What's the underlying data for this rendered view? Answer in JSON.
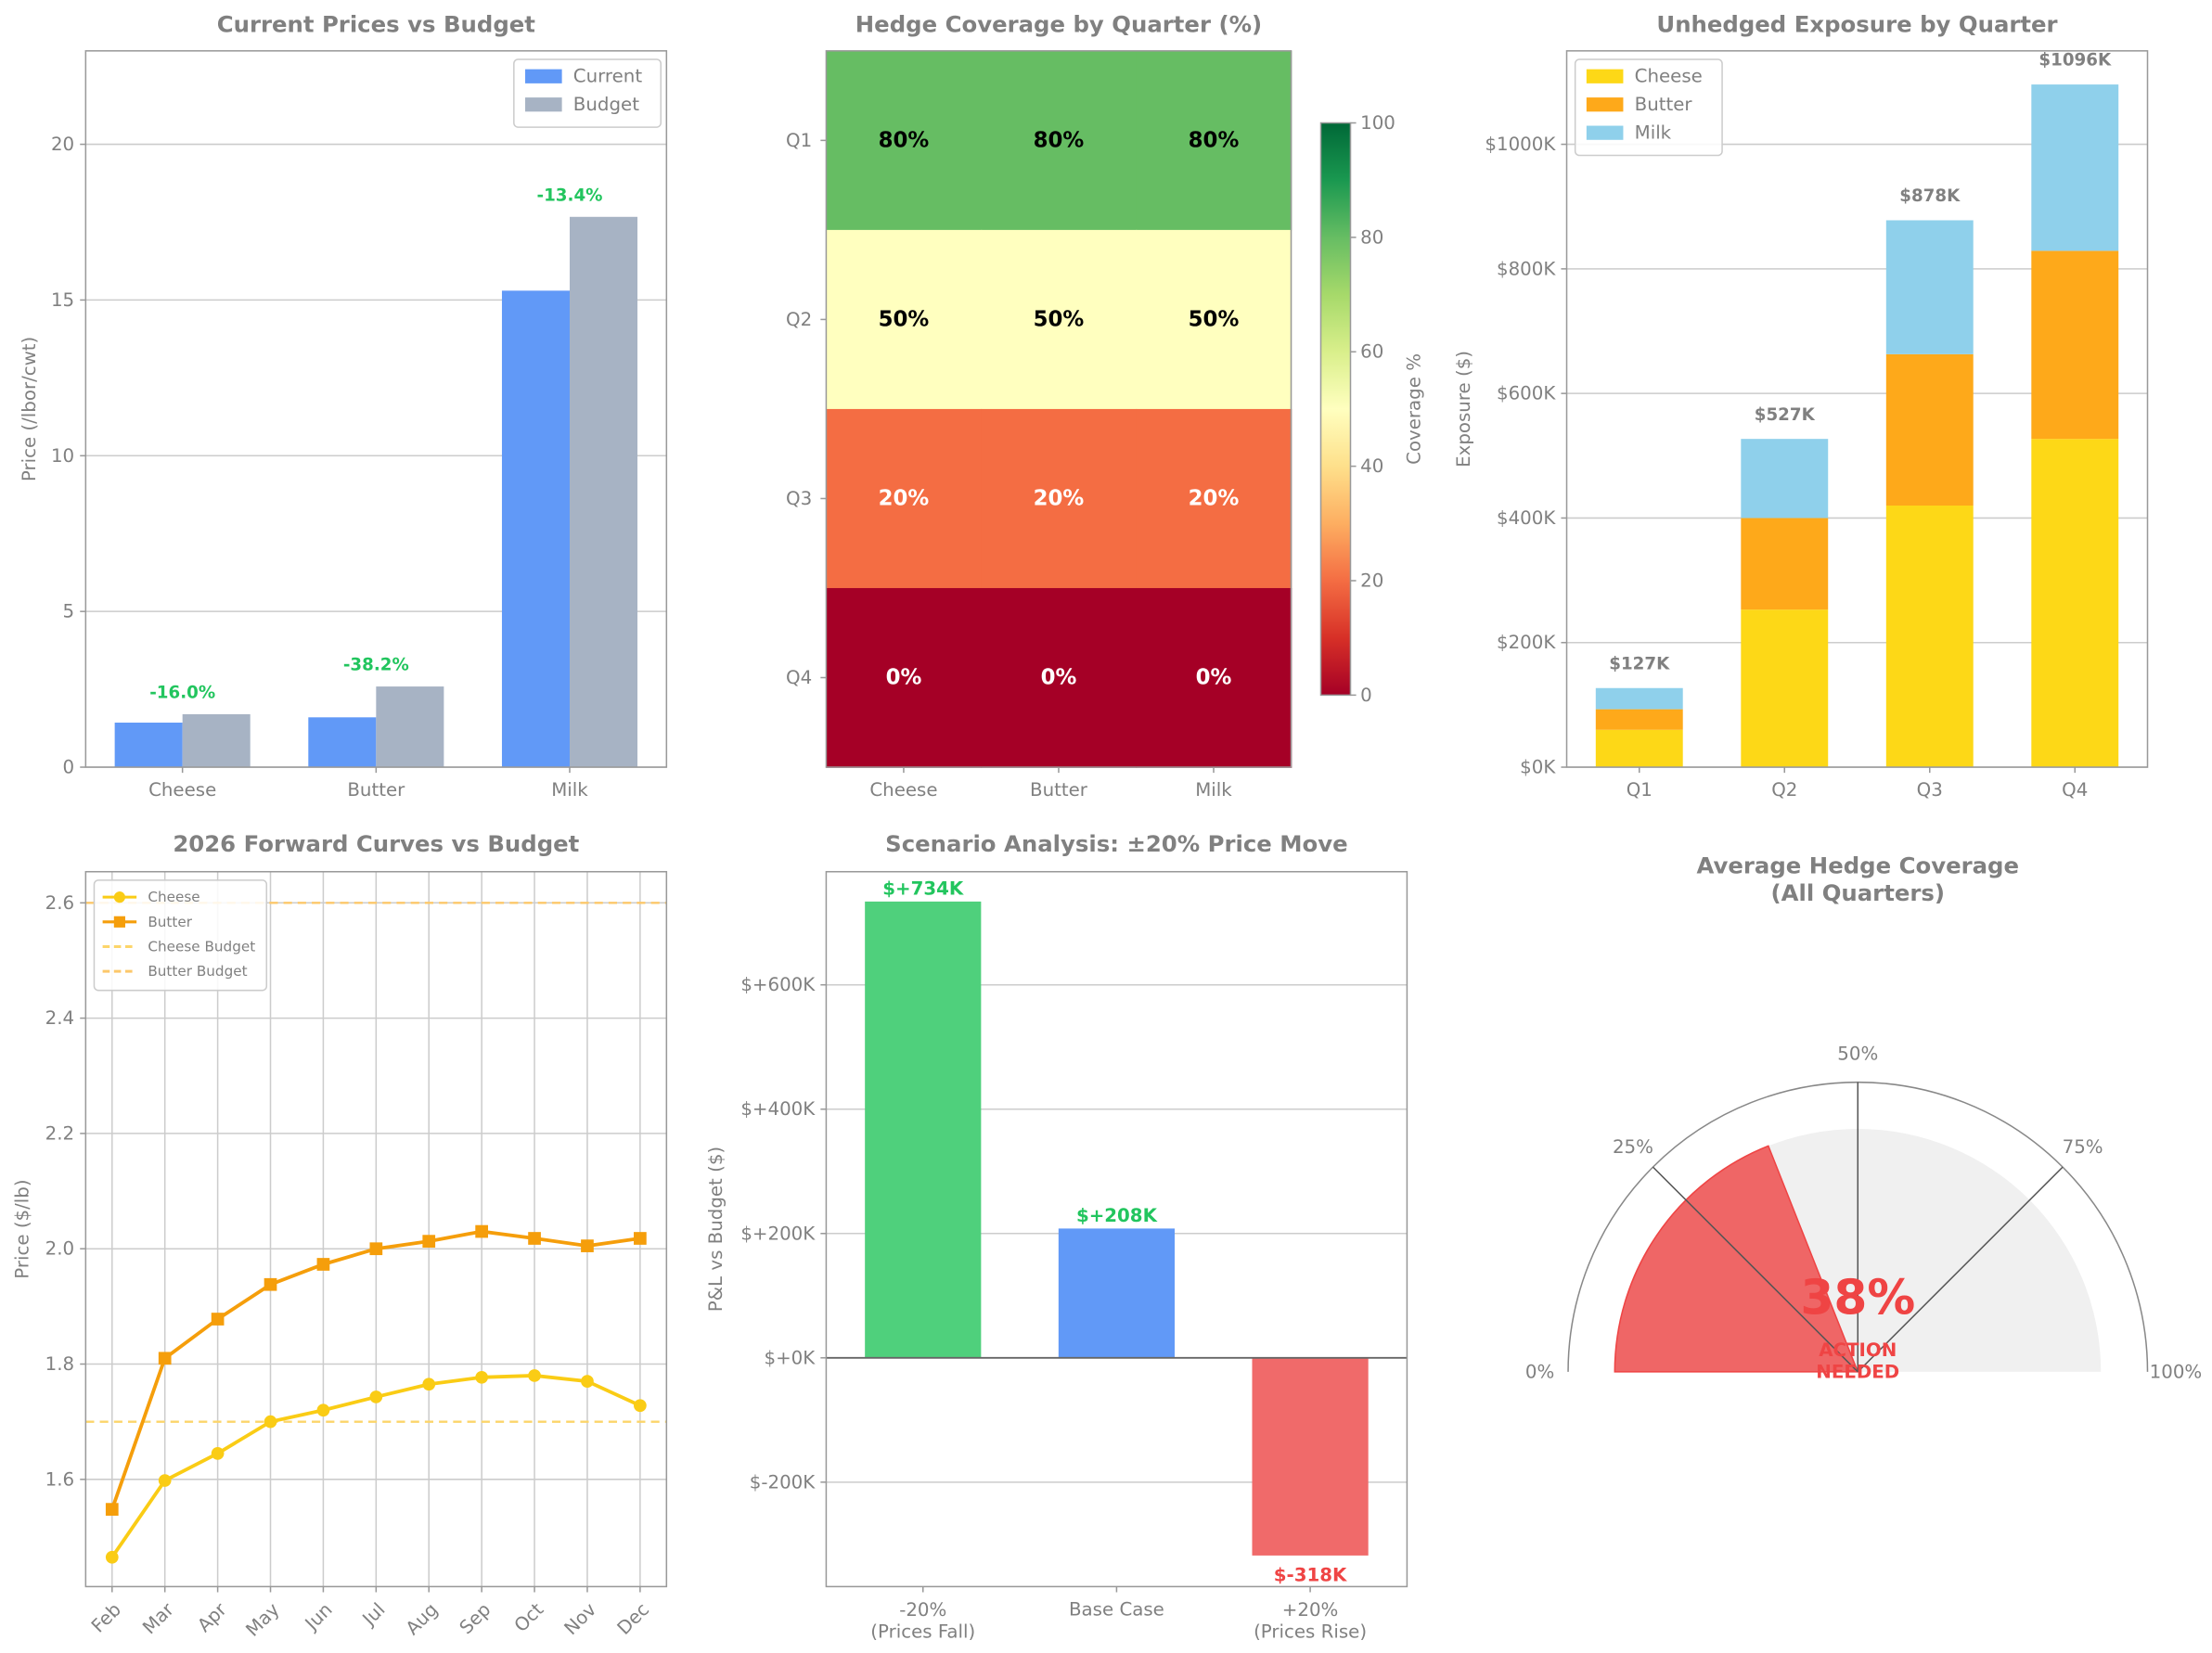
{
  "chart_data": [
    {
      "type": "bar",
      "title": "Current Prices vs Budget",
      "ylabel": "Price (/lbor/cwt)",
      "categories": [
        "Cheese",
        "Butter",
        "Milk"
      ],
      "series": [
        {
          "name": "Current",
          "color": "#6199f7",
          "values": [
            1.43,
            1.6,
            15.3
          ]
        },
        {
          "name": "Budget",
          "color": "#a7b3c4",
          "values": [
            1.7,
            2.59,
            17.67
          ]
        }
      ],
      "differences": {
        "values": [
          -16.0,
          -38.2,
          -13.4
        ],
        "value_labels": [
          "-16.0%",
          "-38.2%",
          "-13.4%"
        ],
        "color": "#22c55e"
      },
      "ylim": [
        0,
        23
      ],
      "yticks": [
        0,
        5,
        10,
        15,
        20
      ],
      "grid": "y",
      "legend": "upper right"
    },
    {
      "type": "heatmap",
      "title": "Hedge Coverage by Quarter (%)",
      "rows": [
        "Q1",
        "Q2",
        "Q3",
        "Q4"
      ],
      "columns": [
        "Cheese",
        "Butter",
        "Milk"
      ],
      "values": [
        [
          80,
          80,
          80
        ],
        [
          50,
          50,
          50
        ],
        [
          20,
          20,
          20
        ],
        [
          0,
          0,
          0
        ]
      ],
      "value_labels": [
        [
          "80%",
          "80%",
          "80%"
        ],
        [
          "50%",
          "50%",
          "50%"
        ],
        [
          "20%",
          "20%",
          "20%"
        ],
        [
          "0%",
          "0%",
          "0%"
        ]
      ],
      "cmap": "RdYlGn",
      "clim": [
        0,
        100
      ],
      "cbar_ticks": [
        0,
        20,
        40,
        60,
        80,
        100
      ],
      "cbar_label": "Coverage %"
    },
    {
      "type": "stacked_bar",
      "title": "Unhedged Exposure by Quarter",
      "ylabel": "Exposure ($)",
      "categories": [
        "Q1",
        "Q2",
        "Q3",
        "Q4"
      ],
      "series": [
        {
          "name": "Cheese",
          "color": "#fdd817",
          "values": [
            60000,
            253000,
            420000,
            527000
          ]
        },
        {
          "name": "Butter",
          "color": "#fea91a",
          "values": [
            33000,
            147000,
            243000,
            302000
          ]
        },
        {
          "name": "Milk",
          "color": "#8fd0eb",
          "values": [
            34000,
            127000,
            215000,
            267000
          ]
        }
      ],
      "totals": {
        "values": [
          127000,
          527000,
          878000,
          1096000
        ],
        "value_labels": [
          "$127K",
          "$527K",
          "$878K",
          "$1096K"
        ]
      },
      "ylim": [
        0,
        1150000
      ],
      "yticks": [
        {
          "value": 0,
          "label": "$0K"
        },
        {
          "value": 200000,
          "label": "$200K"
        },
        {
          "value": 400000,
          "label": "$400K"
        },
        {
          "value": 600000,
          "label": "$600K"
        },
        {
          "value": 800000,
          "label": "$800K"
        },
        {
          "value": 1000000,
          "label": "$1000K"
        }
      ],
      "grid": "y",
      "legend": "upper left"
    },
    {
      "type": "line",
      "title": "2026 Forward Curves vs Budget",
      "ylabel": "Price ($/lb)",
      "categories": [
        "Feb",
        "Mar",
        "Apr",
        "May",
        "Jun",
        "Jul",
        "Aug",
        "Sep",
        "Oct",
        "Nov",
        "Dec"
      ],
      "series": [
        {
          "name": "Cheese",
          "color": "#facc15",
          "marker": "circle",
          "values": [
            1.465,
            1.598,
            1.645,
            1.7,
            1.72,
            1.743,
            1.765,
            1.777,
            1.78,
            1.77,
            1.728
          ]
        },
        {
          "name": "Butter",
          "color": "#f59e0b",
          "marker": "square",
          "values": [
            1.548,
            1.81,
            1.878,
            1.938,
            1.973,
            2.0,
            2.013,
            2.03,
            2.018,
            2.005,
            2.018
          ]
        }
      ],
      "reference_lines": [
        {
          "name": "Cheese Budget",
          "value": 1.7,
          "color": "#fcd56a"
        },
        {
          "name": "Butter Budget",
          "value": 2.6,
          "color": "#fcc86a"
        }
      ],
      "ylim": [
        1.414,
        2.654
      ],
      "yticks": [
        1.6,
        1.8,
        {
          "value": 2,
          "label": "2.0"
        },
        2.2,
        2.4,
        2.6
      ],
      "grid": "both",
      "legend": "upper left"
    },
    {
      "type": "bar",
      "title": "Scenario Analysis: ±20% Price Move",
      "ylabel": "P&L vs Budget ($)",
      "categories": [
        "-20%\n(Prices Fall)",
        "Base Case",
        "+20%\n(Prices Rise)"
      ],
      "values": [
        734000,
        208000,
        -318000
      ],
      "value_labels": [
        "$+734K",
        "$+208K",
        "$-318K"
      ],
      "colors": [
        "#4fd07c",
        "#6199f7",
        "#f06a6a"
      ],
      "value_label_colors": [
        "#22c55e",
        "#22c55e",
        "#ef4444"
      ],
      "ylim": [
        -368000,
        782000
      ],
      "yticks": [
        {
          "value": -200000,
          "label": "$-200K"
        },
        {
          "value": 0,
          "label": "$+0K"
        },
        {
          "value": 200000,
          "label": "$+200K"
        },
        {
          "value": 400000,
          "label": "$+400K"
        },
        {
          "value": 600000,
          "label": "$+600K"
        }
      ],
      "grid": "y",
      "zero_line": true
    },
    {
      "type": "gauge",
      "title": "Average Hedge Coverage\n(All Quarters)",
      "value": 38,
      "value_label": "38%",
      "status": "ACTION\nNEEDED",
      "color": "#ef4444",
      "lim": [
        0,
        100
      ],
      "ticks": [
        {
          "value": 0,
          "label": "0%"
        },
        {
          "value": 25,
          "label": "25%"
        },
        {
          "value": 50,
          "label": "50%"
        },
        {
          "value": 75,
          "label": "75%"
        },
        {
          "value": 100,
          "label": "100%"
        }
      ]
    }
  ]
}
